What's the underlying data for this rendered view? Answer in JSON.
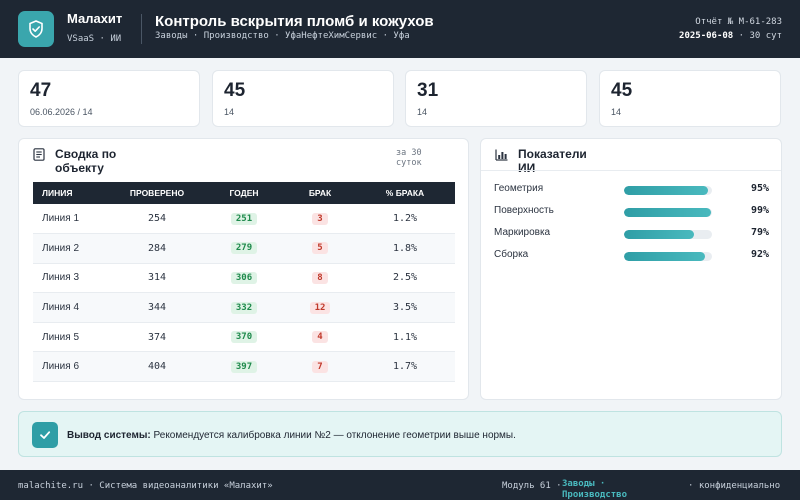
{
  "header": {
    "brand_name": "Малахит",
    "brand_sub": "VSaaS · ИИ",
    "title": "Контроль вскрытия пломб и кожухов",
    "breadcrumbs": "Заводы · Производство · УфаНефтеХимСервис · Уфа",
    "report_id": "Отчёт № М-61-283",
    "report_date": "2025-06-08",
    "report_period": " · 30 сут"
  },
  "kpis": [
    {
      "value": "47",
      "sub": "06.06.2026 / 14"
    },
    {
      "value": "45",
      "sub": "14"
    },
    {
      "value": "31",
      "sub": "14"
    },
    {
      "value": "45",
      "sub": "14"
    }
  ],
  "summary": {
    "title": "Сводка по объекту",
    "period": "за 30 суток",
    "columns": [
      "ЛИНИЯ",
      "ПРОВЕРЕНО",
      "ГОДЕН",
      "БРАК",
      "% БРАКА"
    ],
    "rows": [
      {
        "line": "Линия 1",
        "checked": "254",
        "good": "251",
        "defect": "3",
        "pct": "1.2%"
      },
      {
        "line": "Линия 2",
        "checked": "284",
        "good": "279",
        "defect": "5",
        "pct": "1.8%"
      },
      {
        "line": "Линия 3",
        "checked": "314",
        "good": "306",
        "defect": "8",
        "pct": "2.5%"
      },
      {
        "line": "Линия 4",
        "checked": "344",
        "good": "332",
        "defect": "12",
        "pct": "3.5%"
      },
      {
        "line": "Линия 5",
        "checked": "374",
        "good": "370",
        "defect": "4",
        "pct": "1.1%"
      },
      {
        "line": "Линия 6",
        "checked": "404",
        "good": "397",
        "defect": "7",
        "pct": "1.7%"
      }
    ]
  },
  "ai": {
    "title": "Показатели ИИ",
    "metrics": [
      {
        "label": "Геометрия",
        "value": 95,
        "display": "95%"
      },
      {
        "label": "Поверхность",
        "value": 99,
        "display": "99%"
      },
      {
        "label": "Маркировка",
        "value": 79,
        "display": "79%"
      },
      {
        "label": "Сборка",
        "value": 92,
        "display": "92%"
      }
    ]
  },
  "conclusion": {
    "label": "Вывод системы:",
    "text": " Рекомендуется калибровка линии №2 — отклонение геометрии выше нормы."
  },
  "footer": {
    "left": "malachite.ru · Система видеоаналитики «Малахит»",
    "module": "Модуль 61 ·",
    "link": "Заводы · Производство",
    "right": "· конфиденциально"
  },
  "colors": {
    "dark": "#1e2733",
    "accent": "#2f9ea6",
    "good": "#1f8a4c",
    "bad": "#c0392b"
  }
}
